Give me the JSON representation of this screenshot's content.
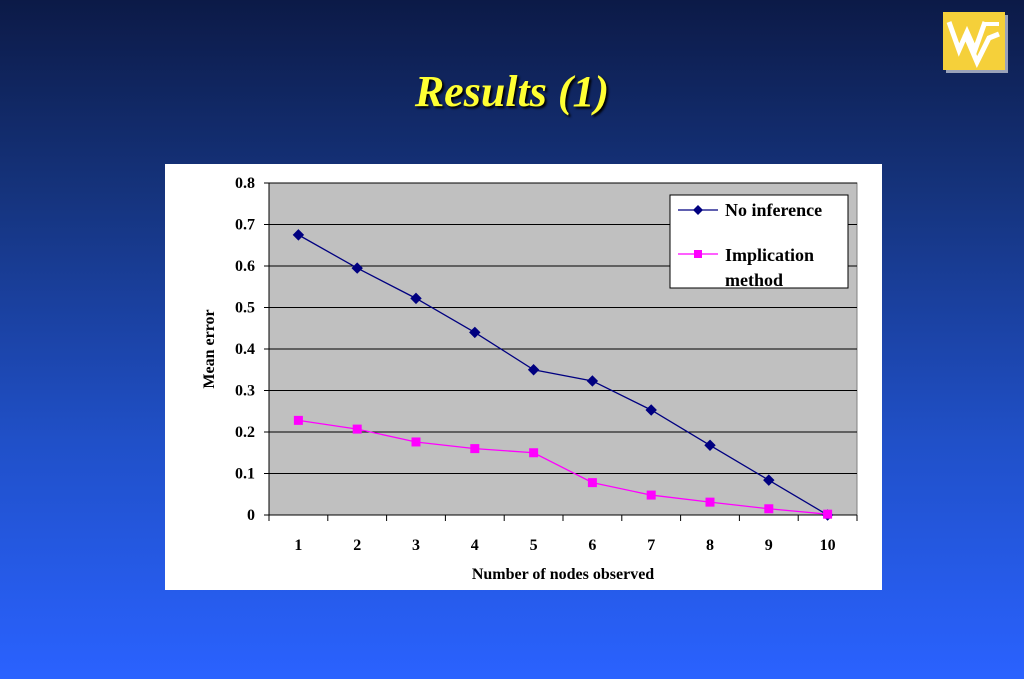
{
  "slide": {
    "title": "Results (1)"
  },
  "logo": {
    "name": "wvu-flying-wv-logo",
    "colors": {
      "gold": "#f5d03a",
      "stroke": "#ffffff"
    }
  },
  "colors": {
    "plot_area": "#c0c0c0",
    "no_inference": "#000080",
    "implication": "#ff00ff"
  },
  "chart_data": {
    "type": "line",
    "title": "",
    "xlabel": "Number of nodes observed",
    "ylabel": "Mean error",
    "categories": [
      "1",
      "2",
      "3",
      "4",
      "5",
      "6",
      "7",
      "8",
      "9",
      "10"
    ],
    "ylim": [
      0,
      0.8
    ],
    "yticks": [
      "0",
      "0.1",
      "0.2",
      "0.3",
      "0.4",
      "0.5",
      "0.6",
      "0.7",
      "0.8"
    ],
    "grid": true,
    "legend_position": "top-right",
    "series": [
      {
        "name": "No inference",
        "marker": "diamond",
        "values": [
          0.675,
          0.595,
          0.522,
          0.44,
          0.35,
          0.323,
          0.253,
          0.168,
          0.084,
          0.0
        ]
      },
      {
        "name": "Implication method",
        "marker": "square",
        "values": [
          0.228,
          0.207,
          0.176,
          0.16,
          0.15,
          0.078,
          0.048,
          0.031,
          0.015,
          0.002
        ]
      }
    ]
  }
}
